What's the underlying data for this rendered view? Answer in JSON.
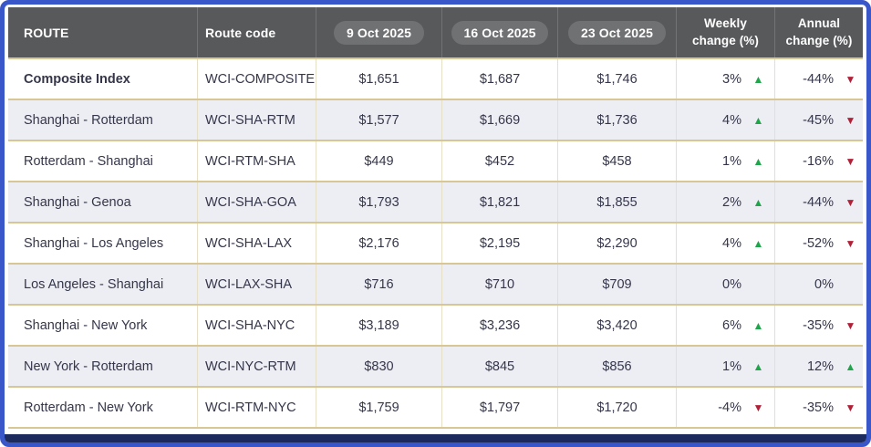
{
  "table": {
    "columns": {
      "route": "ROUTE",
      "route_code": "Route code",
      "dates": [
        "9 Oct 2025",
        "16 Oct 2025",
        "23 Oct 2025"
      ],
      "weekly_change": {
        "line1": "Weekly",
        "line2": "change (%)"
      },
      "annual_change": {
        "line1": "Annual",
        "line2": "change (%)"
      }
    },
    "rows": [
      {
        "route": "Composite Index",
        "code": "WCI-COMPOSITE",
        "prices": [
          "$1,651",
          "$1,687",
          "$1,746"
        ],
        "weekly": {
          "value": "3%",
          "dir": "up"
        },
        "annual": {
          "value": "-44%",
          "dir": "down"
        },
        "bold": true
      },
      {
        "route": "Shanghai - Rotterdam",
        "code": "WCI-SHA-RTM",
        "prices": [
          "$1,577",
          "$1,669",
          "$1,736"
        ],
        "weekly": {
          "value": "4%",
          "dir": "up"
        },
        "annual": {
          "value": "-45%",
          "dir": "down"
        },
        "bold": false
      },
      {
        "route": "Rotterdam - Shanghai",
        "code": "WCI-RTM-SHA",
        "prices": [
          "$449",
          "$452",
          "$458"
        ],
        "weekly": {
          "value": "1%",
          "dir": "up"
        },
        "annual": {
          "value": "-16%",
          "dir": "down"
        },
        "bold": false
      },
      {
        "route": "Shanghai - Genoa",
        "code": "WCI-SHA-GOA",
        "prices": [
          "$1,793",
          "$1,821",
          "$1,855"
        ],
        "weekly": {
          "value": "2%",
          "dir": "up"
        },
        "annual": {
          "value": "-44%",
          "dir": "down"
        },
        "bold": false
      },
      {
        "route": "Shanghai - Los Angeles",
        "code": "WCI-SHA-LAX",
        "prices": [
          "$2,176",
          "$2,195",
          "$2,290"
        ],
        "weekly": {
          "value": "4%",
          "dir": "up"
        },
        "annual": {
          "value": "-52%",
          "dir": "down"
        },
        "bold": false
      },
      {
        "route": "Los Angeles - Shanghai",
        "code": "WCI-LAX-SHA",
        "prices": [
          "$716",
          "$710",
          "$709"
        ],
        "weekly": {
          "value": "0%",
          "dir": "none"
        },
        "annual": {
          "value": "0%",
          "dir": "none"
        },
        "bold": false
      },
      {
        "route": "Shanghai - New York",
        "code": "WCI-SHA-NYC",
        "prices": [
          "$3,189",
          "$3,236",
          "$3,420"
        ],
        "weekly": {
          "value": "6%",
          "dir": "up"
        },
        "annual": {
          "value": "-35%",
          "dir": "down"
        },
        "bold": false
      },
      {
        "route": "New York - Rotterdam",
        "code": "WCI-NYC-RTM",
        "prices": [
          "$830",
          "$845",
          "$856"
        ],
        "weekly": {
          "value": "1%",
          "dir": "up"
        },
        "annual": {
          "value": "12%",
          "dir": "up"
        },
        "bold": false
      },
      {
        "route": "Rotterdam - New York",
        "code": "WCI-RTM-NYC",
        "prices": [
          "$1,759",
          "$1,797",
          "$1,720"
        ],
        "weekly": {
          "value": "-4%",
          "dir": "down"
        },
        "annual": {
          "value": "-35%",
          "dir": "down"
        },
        "bold": false
      }
    ]
  },
  "icons": {
    "up_arrow": "▲",
    "down_arrow": "▼"
  },
  "colors": {
    "frame_border": "#3a57c9",
    "header_bg": "#58595b",
    "date_pill_bg": "#707173",
    "row_alt_bg": "#edeef4",
    "row_separator_gold": "#d8c794",
    "text_dark": "#35364a",
    "positive_green": "#1fa54a",
    "negative_red": "#b22038",
    "bottom_bar_navy": "#1c2a5e"
  }
}
